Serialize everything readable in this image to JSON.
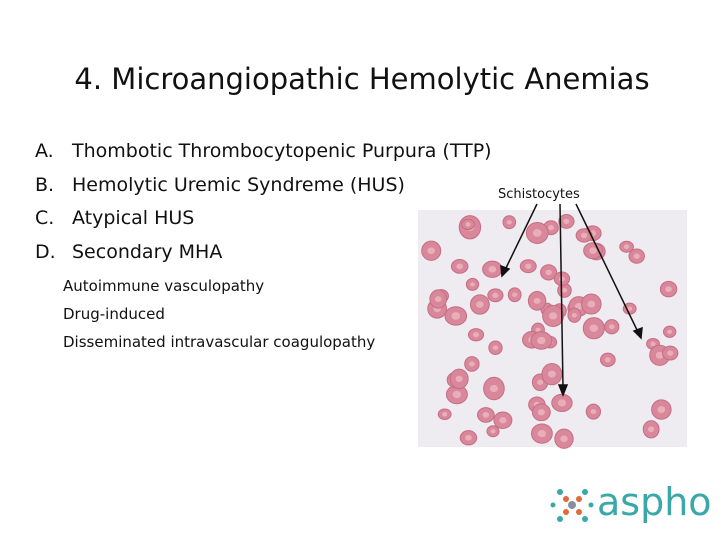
{
  "slide": {
    "title": "4. Microangiopathic Hemolytic Anemias",
    "items": [
      {
        "marker": "A.",
        "text": "Thombotic Thrombocytopenic Purpura (TTP)"
      },
      {
        "marker": "B.",
        "text": "Hemolytic Uremic Syndreme (HUS)"
      },
      {
        "marker": "C.",
        "text": "Atypical HUS"
      },
      {
        "marker": "D.",
        "text": "Secondary MHA"
      }
    ],
    "subitems": [
      "Autoimmune vasculopathy",
      "Drug-induced",
      "Disseminated intravascular coagulopathy"
    ],
    "image_label": "Schistocytes",
    "logo": "aspho"
  }
}
